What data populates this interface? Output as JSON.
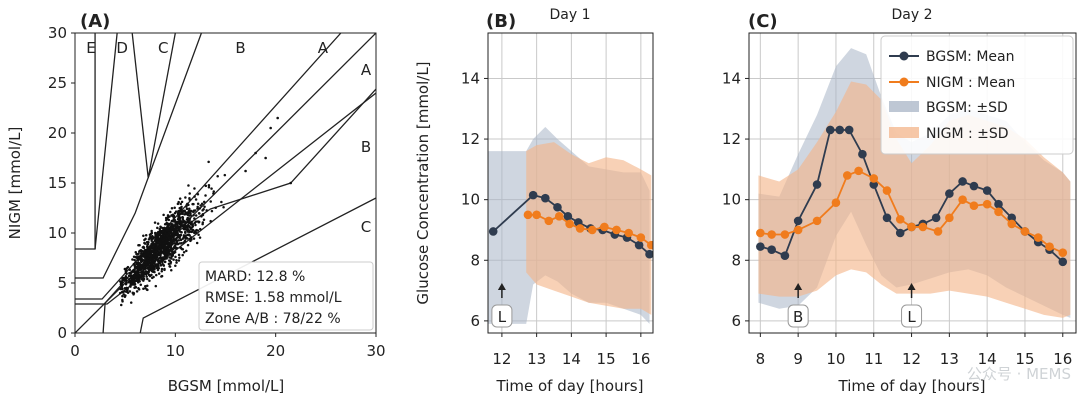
{
  "chart_data": [
    {
      "type": "scatter",
      "panel_label": "(A)",
      "xlabel": "BGSM [mmol/L]",
      "ylabel": "NIGM [mmol/L]",
      "xlim": [
        0,
        30
      ],
      "ylim": [
        0,
        30
      ],
      "xticks": [
        "0",
        "10",
        "20",
        "30"
      ],
      "yticks": [
        "0",
        "5",
        "10",
        "15",
        "20",
        "25",
        "30"
      ],
      "zones_top": [
        "E",
        "D",
        "C",
        "B",
        "A"
      ],
      "zones_right": [
        "A",
        "B",
        "C"
      ],
      "stats": [
        "MARD: 12.8 %",
        "RMSE: 1.58 mmol/L",
        "Zone A/B : 78/22 %"
      ],
      "cloud": {
        "center": [
          8.5,
          8.5
        ],
        "x_range": [
          4.5,
          16.5
        ],
        "n_points": 1400
      },
      "outliers": [
        [
          19.5,
          20.5
        ],
        [
          20.2,
          21.5
        ],
        [
          21.5,
          15.0
        ],
        [
          19.0,
          17.5
        ],
        [
          18.0,
          18.0
        ],
        [
          17.0,
          16.2
        ]
      ],
      "grid": false
    },
    {
      "type": "line",
      "panel_label": "(B)",
      "title": "Day 1",
      "xlabel": "Time of day [hours]",
      "ylabel": "Glucose Concentration [mmol/L]",
      "xlim": [
        11.6,
        16.35
      ],
      "ylim": [
        5.6,
        15.5
      ],
      "xticks": [
        "12",
        "13",
        "14",
        "15",
        "16"
      ],
      "yticks": [
        "6",
        "8",
        "10",
        "12",
        "14"
      ],
      "grid": true,
      "series": [
        {
          "name": "BGSM: Mean",
          "color": "#2f3c4f",
          "x": [
            11.75,
            12.9,
            13.25,
            13.6,
            13.9,
            14.2,
            14.55,
            14.9,
            15.25,
            15.6,
            15.95,
            16.25
          ],
          "y": [
            8.95,
            10.15,
            10.05,
            9.75,
            9.45,
            9.25,
            9.05,
            9.0,
            8.85,
            8.75,
            8.5,
            8.2
          ]
        },
        {
          "name": "NIGM : Mean",
          "color": "#f07c1d",
          "x": [
            12.75,
            13.0,
            13.35,
            13.65,
            13.95,
            14.25,
            14.6,
            14.95,
            15.3,
            15.65,
            16.0,
            16.3
          ],
          "y": [
            9.5,
            9.5,
            9.3,
            9.45,
            9.2,
            9.05,
            9.0,
            9.1,
            9.0,
            8.9,
            8.75,
            8.5
          ]
        }
      ],
      "bands": [
        {
          "name": "BGSM: ±SD",
          "color": "#a8b4c6",
          "x": [
            11.6,
            12.7,
            12.9,
            13.25,
            13.6,
            14.0,
            14.5,
            15.0,
            15.5,
            16.0,
            16.25
          ],
          "lo": [
            5.9,
            5.9,
            7.2,
            7.5,
            7.3,
            6.9,
            6.6,
            6.6,
            6.4,
            6.2,
            5.9
          ],
          "hi": [
            11.6,
            11.6,
            12.0,
            12.4,
            12.0,
            11.6,
            11.1,
            11.0,
            10.9,
            10.9,
            10.3
          ]
        },
        {
          "name": "NIGM : ±SD",
          "color": "#f3b489",
          "x": [
            12.7,
            13.0,
            13.5,
            14.0,
            14.5,
            15.0,
            15.5,
            16.0,
            16.3
          ],
          "lo": [
            7.6,
            7.2,
            7.0,
            6.8,
            6.6,
            6.5,
            6.4,
            6.4,
            6.2
          ],
          "hi": [
            11.6,
            11.8,
            11.9,
            11.5,
            11.2,
            11.4,
            11.3,
            11.0,
            10.8
          ]
        }
      ],
      "events": [
        {
          "x": 12.0,
          "label": "L"
        }
      ]
    },
    {
      "type": "line",
      "panel_label": "(C)",
      "title": "Day 2",
      "xlabel": "Time of day [hours]",
      "xlim": [
        7.7,
        16.35
      ],
      "ylim": [
        5.6,
        15.5
      ],
      "xticks": [
        "8",
        "9",
        "10",
        "11",
        "12",
        "13",
        "14",
        "15",
        "16"
      ],
      "yticks": [
        "6",
        "8",
        "10",
        "12",
        "14"
      ],
      "grid": true,
      "legend": "top-right",
      "series": [
        {
          "name": "BGSM: Mean",
          "color": "#2f3c4f",
          "x": [
            8.0,
            8.3,
            8.65,
            9.0,
            9.5,
            9.85,
            10.1,
            10.35,
            10.7,
            11.0,
            11.35,
            11.7,
            12.0,
            12.3,
            12.65,
            13.0,
            13.35,
            13.65,
            14.0,
            14.3,
            14.65,
            15.0,
            15.35,
            15.65,
            16.0
          ],
          "y": [
            8.45,
            8.35,
            8.15,
            9.3,
            10.5,
            12.3,
            12.3,
            12.3,
            11.5,
            10.5,
            9.4,
            8.9,
            9.1,
            9.2,
            9.4,
            10.2,
            10.6,
            10.45,
            10.3,
            9.85,
            9.4,
            8.95,
            8.6,
            8.35,
            7.95
          ]
        },
        {
          "name": "NIGM : Mean",
          "color": "#f07c1d",
          "x": [
            8.0,
            8.3,
            8.65,
            9.0,
            9.5,
            10.0,
            10.3,
            10.6,
            11.0,
            11.35,
            11.7,
            12.0,
            12.3,
            12.7,
            13.0,
            13.35,
            13.65,
            14.0,
            14.3,
            14.65,
            15.0,
            15.35,
            15.65,
            16.0
          ],
          "y": [
            8.9,
            8.85,
            8.85,
            9.0,
            9.3,
            9.9,
            10.8,
            10.95,
            10.7,
            10.3,
            9.35,
            9.1,
            9.1,
            8.95,
            9.4,
            10.0,
            9.8,
            9.85,
            9.6,
            9.2,
            8.95,
            8.75,
            8.45,
            8.25
          ]
        }
      ],
      "bands": [
        {
          "name": "BGSM: ±SD",
          "color": "#a8b4c6",
          "x": [
            7.95,
            8.5,
            9.0,
            9.5,
            10.0,
            10.4,
            10.8,
            11.2,
            11.6,
            12.0,
            12.5,
            13.0,
            13.5,
            14.0,
            14.5,
            15.0,
            15.5,
            16.0,
            16.2
          ],
          "lo": [
            6.6,
            6.4,
            6.5,
            7.1,
            8.8,
            9.6,
            8.5,
            7.5,
            7.1,
            7.2,
            7.4,
            7.6,
            7.7,
            7.5,
            7.1,
            6.8,
            6.5,
            6.2,
            6.1
          ],
          "hi": [
            10.2,
            10.1,
            11.5,
            12.8,
            14.4,
            15.0,
            14.8,
            13.4,
            12.2,
            11.9,
            12.2,
            12.8,
            13.0,
            12.8,
            12.6,
            11.9,
            11.3,
            10.9,
            10.6
          ]
        },
        {
          "name": "NIGM : ±SD",
          "color": "#f3b489",
          "x": [
            7.95,
            8.5,
            9.0,
            9.5,
            10.0,
            10.4,
            10.8,
            11.2,
            11.6,
            12.0,
            12.5,
            13.0,
            13.5,
            14.0,
            14.5,
            15.0,
            15.5,
            16.0,
            16.2
          ],
          "lo": [
            6.9,
            6.8,
            6.8,
            7.0,
            7.5,
            7.7,
            7.6,
            7.2,
            6.9,
            6.9,
            6.9,
            7.0,
            6.9,
            6.8,
            6.6,
            6.4,
            6.2,
            6.1,
            6.2
          ],
          "hi": [
            10.8,
            10.6,
            11.0,
            11.9,
            12.9,
            13.9,
            13.8,
            13.3,
            12.0,
            11.2,
            11.8,
            12.6,
            12.8,
            12.6,
            12.4,
            12.0,
            11.4,
            10.9,
            10.6
          ]
        }
      ],
      "events": [
        {
          "x": 9.0,
          "label": "B"
        },
        {
          "x": 12.0,
          "label": "L"
        }
      ]
    }
  ],
  "watermark": {
    "text": "公众号 · MEMS"
  }
}
